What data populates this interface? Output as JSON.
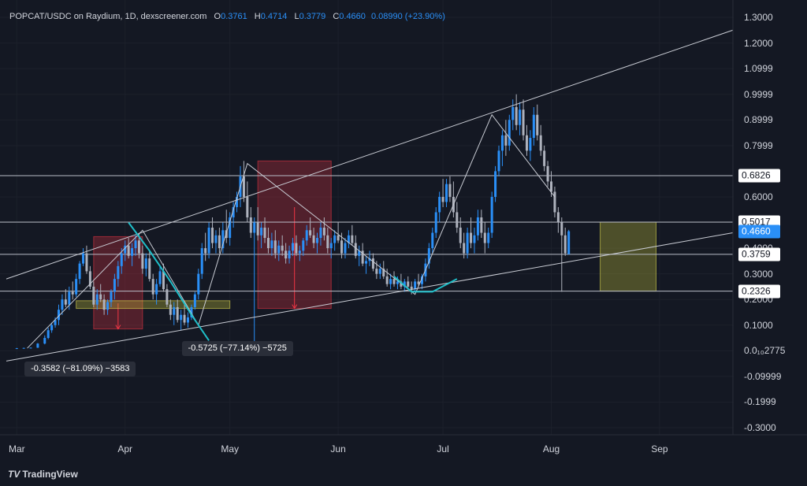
{
  "header": {
    "symbol": "POPCAT/USDC on Raydium, 1D, dexscreener.com",
    "o_key": "O",
    "o_val": "0.3761",
    "h_key": "H",
    "h_val": "0.4714",
    "l_key": "L",
    "l_val": "0.3779",
    "c_key": "C",
    "c_val": "0.4660",
    "chg": "0.08990 (+23.90%)"
  },
  "brand": {
    "logo": "TV",
    "name": "TradingView"
  },
  "colors": {
    "background": "#141823",
    "up": "#2a8ff7",
    "down": "#aeb2bd",
    "drawing": "#c9ccd4",
    "accent_curve": "#1fbfc9",
    "red_box": "rgba(242,54,69,0.28)",
    "yellow_box": "rgba(200,195,60,0.32)"
  },
  "chart_data": {
    "type": "candlestick",
    "title": "POPCAT/USDC on Raydium, 1D, dexscreener.com",
    "y_ticks": [
      "1.3000",
      "1.2000",
      "1.0999",
      "0.9999",
      "0.8999",
      "0.7999",
      "0.6000",
      "0.5000",
      "0.4000",
      "0.3000",
      "0.2000",
      "0.1000",
      "0.0₁₀2775",
      "-0.09999",
      "-0.1999",
      "-0.3000"
    ],
    "y_tick_values": [
      1.3,
      1.2,
      1.1,
      1.0,
      0.9,
      0.8,
      0.6,
      0.5,
      0.4,
      0.3,
      0.2,
      0.1,
      0.0,
      -0.1,
      -0.2,
      -0.3
    ],
    "x_ticks": [
      "Mar",
      "Apr",
      "May",
      "Jun",
      "Jul",
      "Aug",
      "Sep"
    ],
    "x_tick_days": [
      0,
      31,
      61,
      92,
      122,
      153,
      184
    ],
    "day_range": [
      -3,
      205
    ],
    "price_range": [
      -0.3,
      1.3
    ],
    "price_labels": [
      {
        "text": "0.6826",
        "value": 0.6826
      },
      {
        "text": "0.5017",
        "value": 0.5017
      },
      {
        "text": "0.4660",
        "value": 0.466,
        "current": true
      },
      {
        "text": "0.3759",
        "value": 0.3759
      },
      {
        "text": "0.2326",
        "value": 0.2326
      }
    ],
    "horizontal_lines": [
      0.6826,
      0.5017,
      0.3759,
      0.2326
    ],
    "trend_lines": [
      {
        "from": [
          -3,
          0.28
        ],
        "to": [
          205,
          1.25
        ]
      },
      {
        "from": [
          -3,
          -0.04
        ],
        "to": [
          205,
          0.46
        ]
      }
    ],
    "path_lines": [
      [
        [
          3,
          0.01
        ],
        [
          36,
          0.47
        ],
        [
          52,
          0.1
        ],
        [
          66,
          0.73
        ],
        [
          114,
          0.22
        ],
        [
          136,
          0.92
        ],
        [
          154,
          0.6
        ]
      ]
    ],
    "curves": [
      [
        [
          32,
          0.5
        ],
        [
          38,
          0.39
        ],
        [
          44,
          0.27
        ],
        [
          50,
          0.14
        ],
        [
          55,
          0.04
        ]
      ],
      [
        [
          108,
          0.29
        ],
        [
          113,
          0.23
        ],
        [
          119,
          0.23
        ],
        [
          126,
          0.28
        ]
      ]
    ],
    "measure_boxes": [
      {
        "x0": 22,
        "x1": 36,
        "y0": 0.085,
        "y1": 0.445,
        "color": "red",
        "arrow_from": 0.185,
        "arrow_to": 0.085
      },
      {
        "x0": 69,
        "x1": 90,
        "y0": 0.165,
        "y1": 0.74,
        "color": "red",
        "arrow_from": 0.56,
        "arrow_to": 0.165
      },
      {
        "x0": 17,
        "x1": 61,
        "y0": 0.165,
        "y1": 0.195,
        "color": "yellow"
      },
      {
        "x0": 167,
        "x1": 183,
        "y0": 0.2326,
        "y1": 0.5017,
        "color": "yellow"
      }
    ],
    "measure_labels": [
      {
        "text": "-0.3582 (−81.09%) −3583",
        "day": 18,
        "price": -0.07
      },
      {
        "text": "-0.5725 (−77.14%) −5725",
        "day": 63,
        "price": 0.01
      }
    ],
    "candles": [
      [
        0,
        0.01,
        0.011,
        0.009,
        0.01
      ],
      [
        2,
        0.01,
        0.012,
        0.009,
        0.011
      ],
      [
        4,
        0.011,
        0.013,
        0.01,
        0.012
      ],
      [
        6,
        0.012,
        0.03,
        0.011,
        0.028
      ],
      [
        8,
        0.028,
        0.06,
        0.025,
        0.05
      ],
      [
        9,
        0.05,
        0.09,
        0.045,
        0.08
      ],
      [
        10,
        0.08,
        0.11,
        0.07,
        0.1
      ],
      [
        11,
        0.1,
        0.13,
        0.09,
        0.12
      ],
      [
        12,
        0.12,
        0.18,
        0.1,
        0.16
      ],
      [
        13,
        0.16,
        0.22,
        0.14,
        0.2
      ],
      [
        14,
        0.2,
        0.24,
        0.17,
        0.18
      ],
      [
        15,
        0.18,
        0.25,
        0.16,
        0.23
      ],
      [
        16,
        0.23,
        0.27,
        0.2,
        0.22
      ],
      [
        17,
        0.22,
        0.3,
        0.21,
        0.28
      ],
      [
        18,
        0.28,
        0.35,
        0.26,
        0.34
      ],
      [
        19,
        0.34,
        0.4,
        0.33,
        0.38
      ],
      [
        20,
        0.38,
        0.41,
        0.3,
        0.31
      ],
      [
        21,
        0.31,
        0.33,
        0.24,
        0.25
      ],
      [
        22,
        0.25,
        0.27,
        0.17,
        0.18
      ],
      [
        23,
        0.18,
        0.24,
        0.16,
        0.22
      ],
      [
        24,
        0.22,
        0.26,
        0.19,
        0.2
      ],
      [
        25,
        0.2,
        0.22,
        0.14,
        0.16
      ],
      [
        26,
        0.16,
        0.2,
        0.14,
        0.19
      ],
      [
        27,
        0.19,
        0.24,
        0.17,
        0.23
      ],
      [
        28,
        0.23,
        0.3,
        0.2,
        0.28
      ],
      [
        29,
        0.28,
        0.35,
        0.25,
        0.33
      ],
      [
        30,
        0.33,
        0.4,
        0.3,
        0.38
      ],
      [
        31,
        0.38,
        0.43,
        0.35,
        0.41
      ],
      [
        32,
        0.41,
        0.44,
        0.36,
        0.37
      ],
      [
        33,
        0.37,
        0.42,
        0.33,
        0.4
      ],
      [
        34,
        0.4,
        0.45,
        0.37,
        0.43
      ],
      [
        35,
        0.43,
        0.46,
        0.36,
        0.38
      ],
      [
        36,
        0.38,
        0.41,
        0.3,
        0.32
      ],
      [
        37,
        0.32,
        0.38,
        0.29,
        0.36
      ],
      [
        38,
        0.36,
        0.39,
        0.27,
        0.28
      ],
      [
        39,
        0.28,
        0.3,
        0.2,
        0.22
      ],
      [
        40,
        0.22,
        0.28,
        0.18,
        0.26
      ],
      [
        41,
        0.26,
        0.33,
        0.25,
        0.31
      ],
      [
        42,
        0.31,
        0.34,
        0.23,
        0.24
      ],
      [
        43,
        0.24,
        0.26,
        0.17,
        0.18
      ],
      [
        44,
        0.18,
        0.2,
        0.12,
        0.14
      ],
      [
        45,
        0.14,
        0.19,
        0.1,
        0.17
      ],
      [
        46,
        0.17,
        0.2,
        0.11,
        0.12
      ],
      [
        47,
        0.12,
        0.16,
        0.08,
        0.14
      ],
      [
        48,
        0.14,
        0.18,
        0.1,
        0.11
      ],
      [
        49,
        0.11,
        0.15,
        0.09,
        0.13
      ],
      [
        50,
        0.13,
        0.18,
        0.12,
        0.17
      ],
      [
        51,
        0.17,
        0.23,
        0.16,
        0.22
      ],
      [
        52,
        0.22,
        0.32,
        0.2,
        0.3
      ],
      [
        53,
        0.3,
        0.42,
        0.28,
        0.4
      ],
      [
        54,
        0.4,
        0.46,
        0.35,
        0.38
      ],
      [
        55,
        0.38,
        0.5,
        0.36,
        0.48
      ],
      [
        56,
        0.48,
        0.52,
        0.4,
        0.42
      ],
      [
        57,
        0.42,
        0.47,
        0.38,
        0.45
      ],
      [
        58,
        0.45,
        0.48,
        0.38,
        0.4
      ],
      [
        59,
        0.4,
        0.5,
        0.38,
        0.47
      ],
      [
        60,
        0.47,
        0.55,
        0.42,
        0.44
      ],
      [
        61,
        0.44,
        0.54,
        0.41,
        0.52
      ],
      [
        62,
        0.52,
        0.58,
        0.48,
        0.56
      ],
      [
        63,
        0.56,
        0.62,
        0.54,
        0.6
      ],
      [
        64,
        0.6,
        0.72,
        0.56,
        0.68
      ],
      [
        65,
        0.68,
        0.74,
        0.58,
        0.6
      ],
      [
        66,
        0.6,
        0.66,
        0.5,
        0.52
      ],
      [
        67,
        0.52,
        0.56,
        0.44,
        0.46
      ],
      [
        68,
        0.46,
        0.52,
        -0.02,
        0.5
      ],
      [
        69,
        0.5,
        0.56,
        0.43,
        0.45
      ],
      [
        70,
        0.45,
        0.5,
        0.4,
        0.48
      ],
      [
        71,
        0.48,
        0.52,
        0.42,
        0.44
      ],
      [
        72,
        0.44,
        0.48,
        0.38,
        0.4
      ],
      [
        73,
        0.4,
        0.46,
        0.37,
        0.43
      ],
      [
        74,
        0.43,
        0.47,
        0.36,
        0.38
      ],
      [
        75,
        0.38,
        0.43,
        0.35,
        0.41
      ],
      [
        76,
        0.41,
        0.45,
        0.37,
        0.39
      ],
      [
        77,
        0.39,
        0.42,
        0.34,
        0.36
      ],
      [
        78,
        0.36,
        0.41,
        0.34,
        0.39
      ],
      [
        79,
        0.39,
        0.44,
        0.37,
        0.42
      ],
      [
        80,
        0.42,
        0.45,
        0.37,
        0.38
      ],
      [
        81,
        0.38,
        0.41,
        0.35,
        0.39
      ],
      [
        82,
        0.39,
        0.44,
        0.37,
        0.43
      ],
      [
        83,
        0.43,
        0.49,
        0.41,
        0.47
      ],
      [
        84,
        0.47,
        0.52,
        0.44,
        0.45
      ],
      [
        85,
        0.45,
        0.48,
        0.4,
        0.42
      ],
      [
        86,
        0.42,
        0.46,
        0.38,
        0.44
      ],
      [
        87,
        0.44,
        0.5,
        0.41,
        0.48
      ],
      [
        88,
        0.48,
        0.52,
        0.43,
        0.45
      ],
      [
        89,
        0.45,
        0.48,
        0.38,
        0.4
      ],
      [
        90,
        0.4,
        0.44,
        0.36,
        0.42
      ],
      [
        91,
        0.42,
        0.47,
        0.39,
        0.45
      ],
      [
        92,
        0.45,
        0.5,
        0.42,
        0.43
      ],
      [
        93,
        0.43,
        0.46,
        0.36,
        0.38
      ],
      [
        94,
        0.38,
        0.44,
        0.36,
        0.42
      ],
      [
        95,
        0.42,
        0.47,
        0.4,
        0.45
      ],
      [
        96,
        0.45,
        0.49,
        0.41,
        0.42
      ],
      [
        97,
        0.42,
        0.45,
        0.36,
        0.37
      ],
      [
        98,
        0.37,
        0.41,
        0.33,
        0.39
      ],
      [
        99,
        0.39,
        0.42,
        0.33,
        0.34
      ],
      [
        100,
        0.34,
        0.37,
        0.3,
        0.35
      ],
      [
        101,
        0.35,
        0.39,
        0.33,
        0.36
      ],
      [
        102,
        0.36,
        0.38,
        0.31,
        0.32
      ],
      [
        103,
        0.32,
        0.35,
        0.28,
        0.3
      ],
      [
        104,
        0.3,
        0.34,
        0.28,
        0.32
      ],
      [
        105,
        0.32,
        0.35,
        0.28,
        0.29
      ],
      [
        106,
        0.29,
        0.32,
        0.25,
        0.26
      ],
      [
        107,
        0.26,
        0.3,
        0.24,
        0.28
      ],
      [
        108,
        0.28,
        0.31,
        0.25,
        0.26
      ],
      [
        109,
        0.26,
        0.29,
        0.24,
        0.27
      ],
      [
        110,
        0.27,
        0.3,
        0.24,
        0.25
      ],
      [
        111,
        0.25,
        0.28,
        0.23,
        0.27
      ],
      [
        112,
        0.27,
        0.29,
        0.24,
        0.25
      ],
      [
        113,
        0.25,
        0.27,
        0.22,
        0.24
      ],
      [
        114,
        0.24,
        0.28,
        0.23,
        0.27
      ],
      [
        115,
        0.27,
        0.3,
        0.25,
        0.26
      ],
      [
        116,
        0.26,
        0.3,
        0.24,
        0.29
      ],
      [
        117,
        0.29,
        0.36,
        0.27,
        0.34
      ],
      [
        118,
        0.34,
        0.42,
        0.32,
        0.4
      ],
      [
        119,
        0.4,
        0.48,
        0.38,
        0.46
      ],
      [
        120,
        0.46,
        0.56,
        0.44,
        0.54
      ],
      [
        121,
        0.54,
        0.62,
        0.5,
        0.6
      ],
      [
        122,
        0.6,
        0.67,
        0.56,
        0.58
      ],
      [
        123,
        0.58,
        0.67,
        0.56,
        0.65
      ],
      [
        124,
        0.65,
        0.68,
        0.58,
        0.6
      ],
      [
        125,
        0.6,
        0.66,
        0.52,
        0.54
      ],
      [
        126,
        0.54,
        0.58,
        0.46,
        0.48
      ],
      [
        127,
        0.48,
        0.52,
        0.4,
        0.42
      ],
      [
        128,
        0.42,
        0.46,
        0.36,
        0.38
      ],
      [
        129,
        0.38,
        0.48,
        0.36,
        0.46
      ],
      [
        130,
        0.46,
        0.52,
        0.4,
        0.42
      ],
      [
        131,
        0.42,
        0.48,
        0.38,
        0.45
      ],
      [
        132,
        0.45,
        0.55,
        0.43,
        0.52
      ],
      [
        133,
        0.52,
        0.55,
        0.44,
        0.46
      ],
      [
        134,
        0.46,
        0.5,
        0.38,
        0.42
      ],
      [
        135,
        0.42,
        0.48,
        0.4,
        0.46
      ],
      [
        136,
        0.46,
        0.62,
        0.44,
        0.6
      ],
      [
        137,
        0.6,
        0.72,
        0.58,
        0.7
      ],
      [
        138,
        0.7,
        0.8,
        0.68,
        0.78
      ],
      [
        139,
        0.78,
        0.86,
        0.72,
        0.84
      ],
      [
        140,
        0.84,
        0.9,
        0.76,
        0.8
      ],
      [
        141,
        0.8,
        0.92,
        0.78,
        0.9
      ],
      [
        142,
        0.9,
        0.98,
        0.86,
        0.95
      ],
      [
        143,
        0.95,
        1.0,
        0.86,
        0.88
      ],
      [
        144,
        0.88,
        0.97,
        0.84,
        0.94
      ],
      [
        145,
        0.94,
        0.98,
        0.82,
        0.84
      ],
      [
        146,
        0.84,
        0.88,
        0.76,
        0.78
      ],
      [
        147,
        0.78,
        0.86,
        0.74,
        0.83
      ],
      [
        148,
        0.83,
        0.95,
        0.8,
        0.92
      ],
      [
        149,
        0.92,
        0.96,
        0.82,
        0.84
      ],
      [
        150,
        0.84,
        0.88,
        0.76,
        0.78
      ],
      [
        151,
        0.78,
        0.8,
        0.7,
        0.72
      ],
      [
        152,
        0.72,
        0.74,
        0.64,
        0.66
      ],
      [
        153,
        0.66,
        0.7,
        0.6,
        0.62
      ],
      [
        154,
        0.62,
        0.64,
        0.52,
        0.54
      ],
      [
        155,
        0.54,
        0.56,
        0.46,
        0.5
      ],
      [
        156,
        0.5,
        0.52,
        0.23,
        0.45
      ],
      [
        157,
        0.45,
        0.48,
        0.37,
        0.38
      ],
      [
        158,
        0.3761,
        0.4714,
        0.3779,
        0.466
      ]
    ]
  }
}
